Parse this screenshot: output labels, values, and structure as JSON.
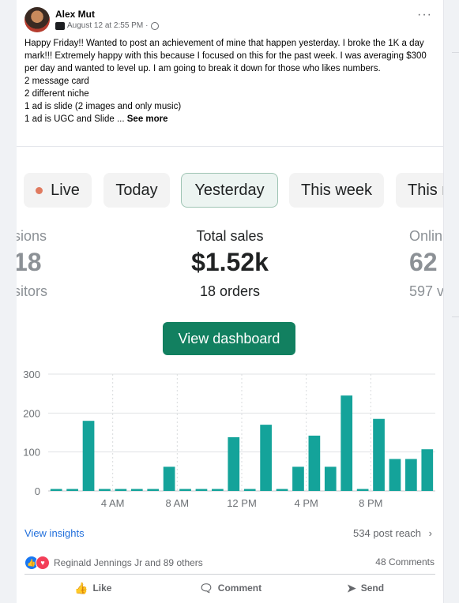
{
  "post": {
    "author": "Alex Mut",
    "timestamp": "August 12 at 2:55 PM",
    "more_label": "···",
    "body": "Happy Friday!! Wanted to post an achievement of mine that happen yesterday. I broke the 1K a day mark!!! Extremely happy with this  because I focused on this for the past week. I was averaging $300 per day and wanted to level up. I am going to break it down for those who likes numbers.\n2 message card\n2 different niche\n1 ad is slide (2 images and only music)\n1 ad is UGC and Slide ... ",
    "see_more": "See more"
  },
  "dashboard": {
    "tabs": [
      {
        "label": "Live"
      },
      {
        "label": "Today"
      },
      {
        "label": "Yesterday",
        "selected": true
      },
      {
        "label": "This week"
      },
      {
        "label": "This m"
      }
    ],
    "left_metric": {
      "label": "sions",
      "value": "18",
      "sub": "sitors"
    },
    "center_metric": {
      "label": "Total sales",
      "value": "$1.52k",
      "sub": "18 orders"
    },
    "right_metric": {
      "label": "Onlin",
      "value": "62",
      "sub": "597 v"
    },
    "button_label": "View dashboard",
    "accent_color": "#128060",
    "bar_color": "#14a39a"
  },
  "chart_data": {
    "type": "bar",
    "ylim": [
      0,
      300
    ],
    "yticks": [
      "300",
      "200",
      "100",
      "0"
    ],
    "xtick_labels": [
      "4 AM",
      "8 AM",
      "12 PM",
      "4 PM",
      "8 PM"
    ],
    "xtick_positions": [
      4,
      8,
      12,
      16,
      20
    ],
    "values": [
      5,
      5,
      180,
      5,
      5,
      5,
      5,
      62,
      5,
      5,
      5,
      138,
      5,
      170,
      5,
      62,
      142,
      62,
      245,
      5,
      185,
      82,
      82,
      107
    ]
  },
  "footer": {
    "insights_label": "View insights",
    "reach_label": "534 post reach",
    "reaction_text": "Reginald Jennings Jr and 89 others",
    "comments_label": "48 Comments",
    "like_label": "Like",
    "comment_label": "Comment",
    "send_label": "Send"
  }
}
